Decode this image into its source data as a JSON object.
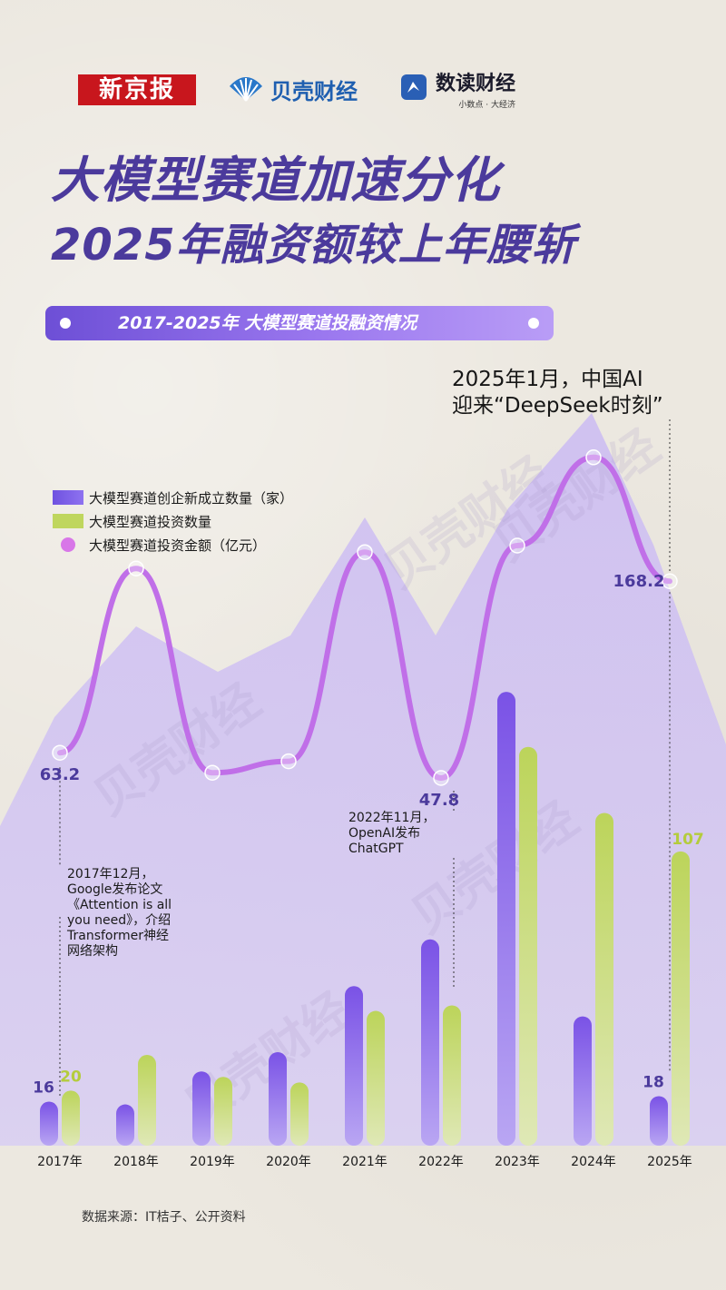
{
  "header": {
    "logos": [
      {
        "name": "新京报"
      },
      {
        "name": "贝壳财经"
      },
      {
        "name": "数读财经",
        "slogan": "小数点 · 大经济"
      }
    ],
    "title_line1": "大模型赛道加速分化",
    "title_line2": "2025年融资额较上年腰斩",
    "banner": "2017-2025年 大模型赛道投融资情况"
  },
  "headline": {
    "line1": "2025年1月，中国AI",
    "line2": "迎来“DeepSeek时刻”"
  },
  "annotations": {
    "a2017": [
      "2017年12月，",
      "Google发布论文",
      "《Attention is all",
      "you need》，介绍",
      "Transformer神经",
      "网络架构"
    ],
    "a2022": [
      "2022年11月，",
      "OpenAI发布",
      "ChatGPT"
    ]
  },
  "source": "数据来源：IT桔子、公开资料",
  "watermark": "贝壳财经",
  "colors": {
    "title": "#4b3a9c",
    "bar_purple": "#7a5ae8",
    "bar_green": "#bfd65e",
    "line": "#c06fe8",
    "label_purple": "#4b3a9c",
    "label_green": "#b4cc3c"
  },
  "chart_data": {
    "type": "bar",
    "categories": [
      "2017年",
      "2018年",
      "2019年",
      "2020年",
      "2021年",
      "2022年",
      "2023年",
      "2024年",
      "2025年"
    ],
    "series": [
      {
        "name": "大模型赛道创企新成立数量（家）",
        "type": "bar",
        "values": [
          16,
          15,
          27,
          34,
          58,
          75,
          165,
          47,
          18
        ]
      },
      {
        "name": "大模型赛道投资数量",
        "type": "bar",
        "values": [
          20,
          33,
          25,
          23,
          49,
          51,
          145,
          121,
          107
        ]
      },
      {
        "name": "大模型赛道投资金额（亿元）",
        "type": "line",
        "values": [
          63.2,
          176,
          51,
          58,
          186,
          47.8,
          190,
          244,
          168.2
        ]
      }
    ],
    "data_labels": {
      "bars_2017": [
        "16",
        "20"
      ],
      "bar_2025_purple": "18",
      "bar_2025_green": "107",
      "line_2017": "63.2",
      "line_2022": "47.8",
      "line_2025": "168.2"
    },
    "legend_position": "upper-left"
  }
}
